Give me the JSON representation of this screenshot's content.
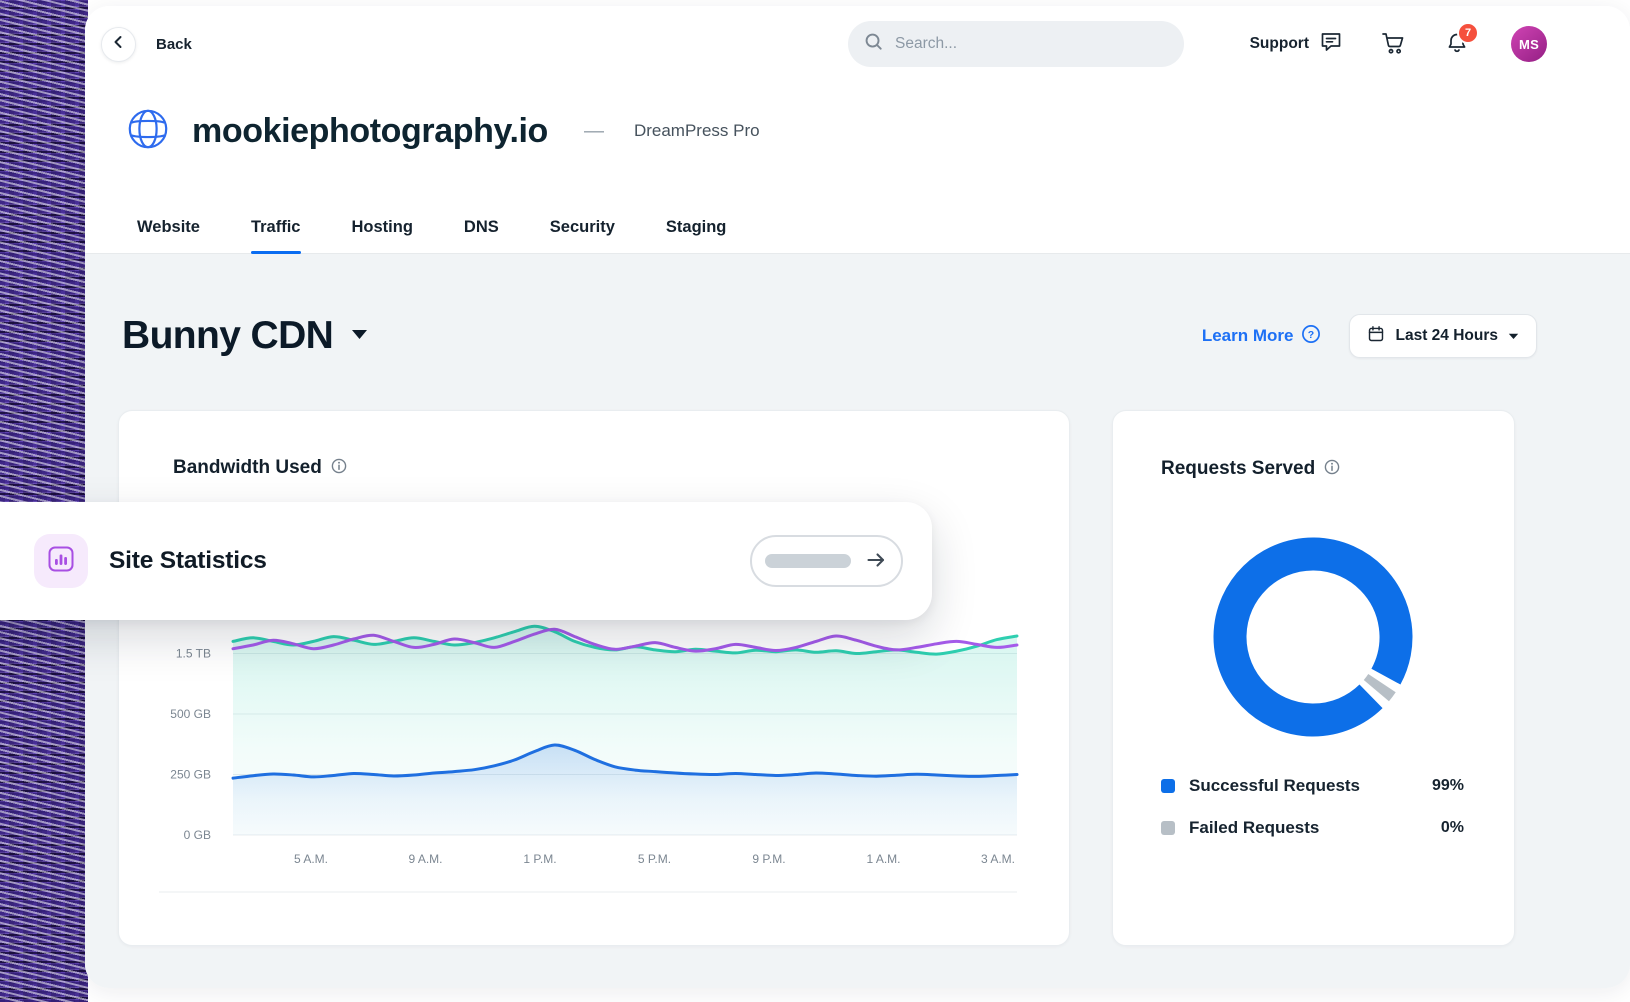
{
  "topbar": {
    "back_label": "Back",
    "search": {
      "placeholder": "Search..."
    },
    "support_label": "Support",
    "notification_badge": "7",
    "avatar_initials": "MS"
  },
  "site_header": {
    "domain": "mookiephotography.io",
    "separator": "—",
    "plan": "DreamPress Pro"
  },
  "tabs": [
    {
      "label": "Website",
      "active": false
    },
    {
      "label": "Traffic",
      "active": true
    },
    {
      "label": "Hosting",
      "active": false
    },
    {
      "label": "DNS",
      "active": false
    },
    {
      "label": "Security",
      "active": false
    },
    {
      "label": "Staging",
      "active": false
    }
  ],
  "toolbar": {
    "page_title": "Bunny CDN",
    "learn_more_label": "Learn More",
    "time_range_label": "Last 24 Hours"
  },
  "overlay": {
    "title": "Site Statistics"
  },
  "bandwidth_card": {
    "title": "Bandwidth Used"
  },
  "requests_card": {
    "title": "Requests Served",
    "legend": [
      {
        "label": "Successful Requests",
        "value": "99%",
        "color": "#0d6fe8"
      },
      {
        "label": "Failed Requests",
        "value": "0%",
        "color": "#b7bfc6"
      }
    ]
  },
  "colors": {
    "accent_blue": "#0a6cf1",
    "link_blue": "#1d70f5",
    "badge_red": "#f5503d",
    "overlay_icon_purple": "#a84fe3"
  },
  "chart_data": [
    {
      "type": "line",
      "title": "Bandwidth Used",
      "x_ticks": [
        "5 A.M.",
        "9 A.M.",
        "1 P.M.",
        "5 P.M.",
        "9 P.M.",
        "1 A.M.",
        "3 A.M."
      ],
      "y_ticks": [
        {
          "label": "0 GB",
          "gb": 0
        },
        {
          "label": "250 GB",
          "gb": 250
        },
        {
          "label": "500 GB",
          "gb": 500
        },
        {
          "label": "1.5 TB",
          "gb": 1500
        }
      ],
      "y_scale": "non-linear: labeled ticks are equally spaced; values interpolated between ticks (GB)",
      "grid": true,
      "series": [
        {
          "name": "bandwidth-series-teal",
          "color": "#2ecfb0",
          "area": true,
          "values": [
            1700,
            1760,
            1700,
            1640,
            1700,
            1780,
            1720,
            1650,
            1700,
            1760,
            1700,
            1640,
            1680,
            1760,
            1860,
            1950,
            1860,
            1700,
            1600,
            1560,
            1610,
            1560,
            1530,
            1570,
            1540,
            1510,
            1555,
            1530,
            1560,
            1520,
            1545,
            1500,
            1530,
            1560,
            1520,
            1490,
            1540,
            1620,
            1730,
            1790
          ]
        },
        {
          "name": "bandwidth-series-purple",
          "color": "#a55bea",
          "area": false,
          "values": [
            1580,
            1640,
            1720,
            1660,
            1580,
            1640,
            1740,
            1800,
            1700,
            1600,
            1650,
            1740,
            1680,
            1600,
            1700,
            1820,
            1900,
            1780,
            1650,
            1570,
            1620,
            1680,
            1600,
            1540,
            1580,
            1650,
            1600,
            1550,
            1600,
            1700,
            1790,
            1720,
            1620,
            1560,
            1600,
            1660,
            1700,
            1650,
            1600,
            1640
          ]
        },
        {
          "name": "bandwidth-series-blue",
          "color": "#1f6fe0",
          "area": true,
          "values": [
            235,
            245,
            252,
            248,
            240,
            246,
            254,
            250,
            244,
            248,
            256,
            262,
            270,
            286,
            310,
            345,
            372,
            350,
            312,
            282,
            268,
            262,
            256,
            252,
            250,
            254,
            250,
            246,
            250,
            256,
            252,
            246,
            243,
            247,
            251,
            248,
            244,
            242,
            246,
            250
          ]
        }
      ]
    },
    {
      "type": "pie",
      "title": "Requests Served",
      "legend_position": "bottom",
      "slices": [
        {
          "label": "Successful Requests",
          "value": 99,
          "color": "#0d6fe8"
        },
        {
          "label": "Failed Requests",
          "value": 0,
          "color": "#b7bfc6"
        }
      ]
    }
  ]
}
